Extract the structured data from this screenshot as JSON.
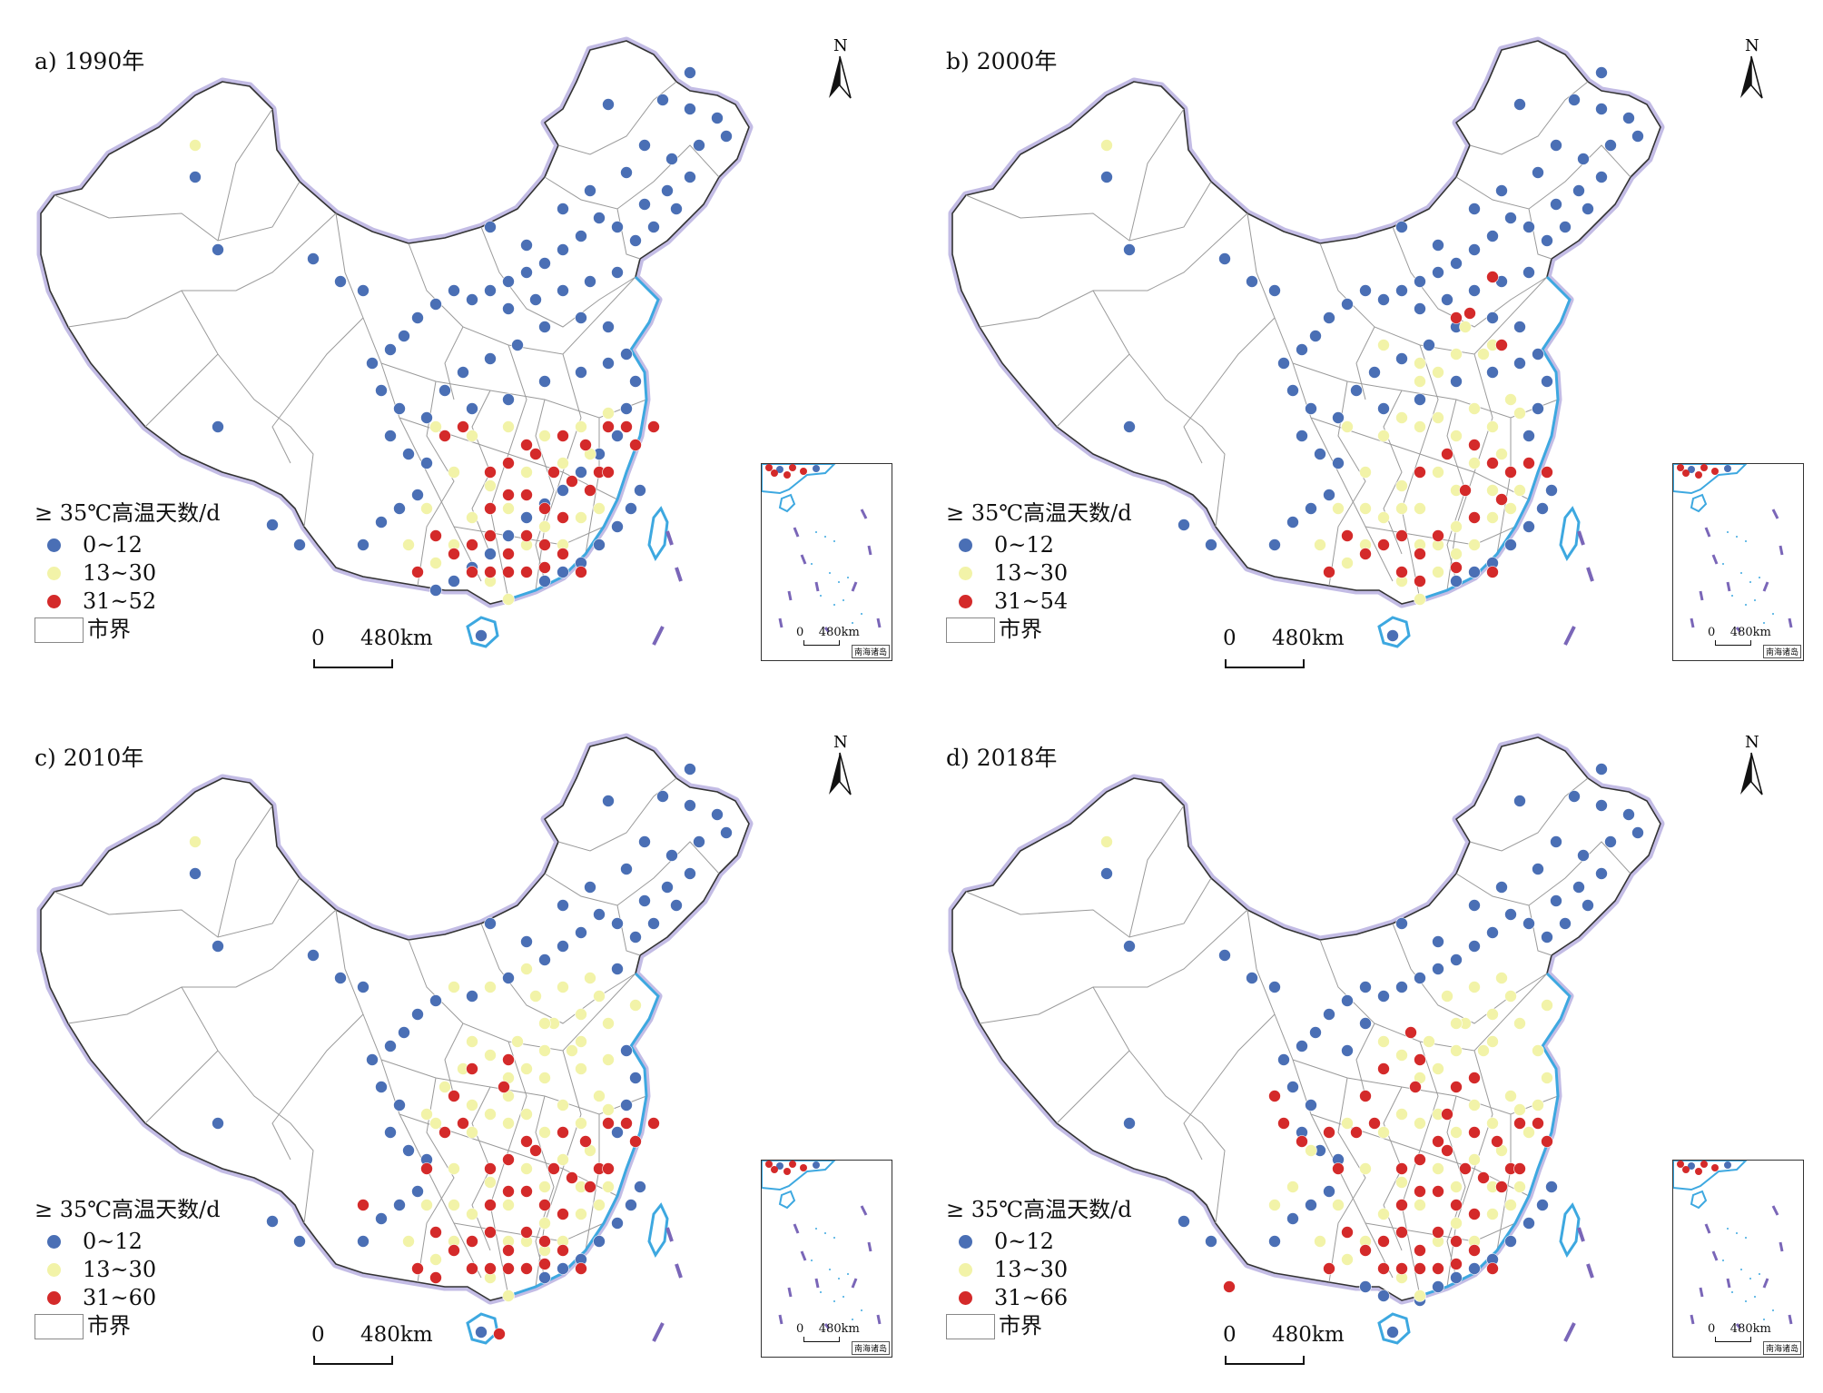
{
  "legend_title": "≥ 35℃高温天数/d",
  "boundary_label": "市界",
  "north_label": "N",
  "scale": {
    "zero": "0",
    "distance": "480km"
  },
  "inset": {
    "scale_zero": "0",
    "scale_distance": "480km",
    "name": "南海诸岛"
  },
  "colors": {
    "low": "#4A6FB5",
    "mid": "#F2F3A8",
    "high": "#D42A2A",
    "coast": "#3DA8E0",
    "border_glow": "#B8B0E0",
    "boundary": "#9A9A9A"
  },
  "panels": [
    {
      "title": "a) 1990年",
      "classes": [
        "0~12",
        "13~30",
        "31~52"
      ]
    },
    {
      "title": "b) 2000年",
      "classes": [
        "0~12",
        "13~30",
        "31~54"
      ]
    },
    {
      "title": "c) 2010年",
      "classes": [
        "0~12",
        "13~30",
        "31~60"
      ]
    },
    {
      "title": "d) 2018年",
      "classes": [
        "0~12",
        "13~30",
        "31~66"
      ]
    }
  ]
}
